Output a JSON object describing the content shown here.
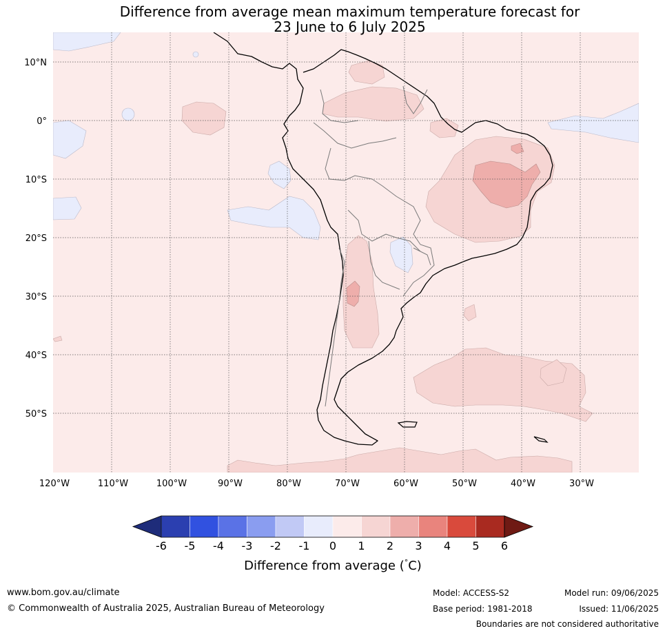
{
  "title": {
    "line1": "Difference from average mean maximum temperature forecast for",
    "line2": "23 June to 6 July 2025"
  },
  "map": {
    "lat_labels": [
      "10°N",
      "0°",
      "10°S",
      "20°S",
      "30°S",
      "40°S",
      "50°S"
    ],
    "lon_labels": [
      "120°W",
      "110°W",
      "100°W",
      "90°W",
      "80°W",
      "70°W",
      "60°W",
      "50°W",
      "40°W",
      "30°W"
    ],
    "background_category": "0 to 1",
    "regions": [
      {
        "name": "warm-region-brazil-1-2",
        "category": "1 to 2"
      },
      {
        "name": "warm-region-brazil-2-3",
        "category": "2 to 3"
      },
      {
        "name": "warm-region-andes-1-2",
        "category": "1 to 2"
      },
      {
        "name": "warm-region-andes-2-3",
        "category": "2 to 3"
      },
      {
        "name": "warm-region-south-atlantic-1-2",
        "category": "1 to 2"
      },
      {
        "name": "cool-region-pacific-minus1-0",
        "category": "-1 to 0"
      }
    ]
  },
  "colorbar": {
    "tick_labels": [
      "-6",
      "-5",
      "-4",
      "-3",
      "-2",
      "-1",
      "0",
      "1",
      "2",
      "3",
      "4",
      "5",
      "6"
    ],
    "colors": [
      "#1e2c7a",
      "#2b3fb0",
      "#3151e0",
      "#5a72e6",
      "#8a9df0",
      "#c1c9f5",
      "#e8ecfc",
      "#fcebea",
      "#f6d5d3",
      "#eeaeab",
      "#e9847d",
      "#d94a3c",
      "#a92a20",
      "#6f1a14"
    ],
    "label": "Difference from average (",
    "label_unit": "°",
    "label_tail": "C)"
  },
  "footer": {
    "website": "www.bom.gov.au/climate",
    "copyright": "© Commonwealth of Australia 2025, Australian Bureau of Meteorology",
    "model": "Model: ACCESS-S2",
    "base_period": "Base period: 1981-2018",
    "model_run": "Model run: 09/06/2025",
    "issued": "Issued: 11/06/2025",
    "disclaimer": "Boundaries are not considered authoritative"
  }
}
